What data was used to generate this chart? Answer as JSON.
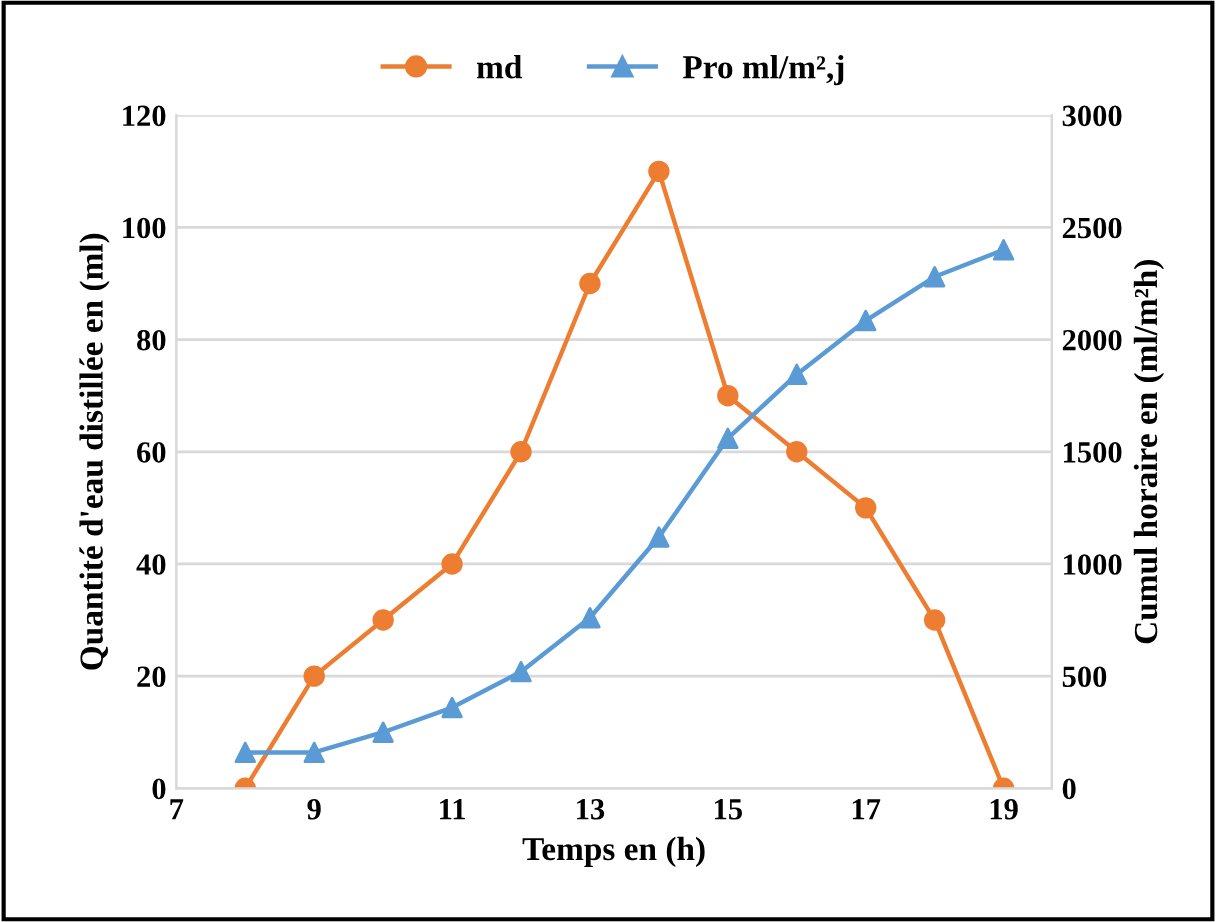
{
  "chart_data": {
    "type": "line",
    "xlabel": "Temps en (h)",
    "ylabel": "Quantité d'eau distillée en (ml)",
    "y2label": "Cumul horaire en (ml/m²h)",
    "x": [
      8,
      9,
      10,
      11,
      12,
      13,
      14,
      15,
      16,
      17,
      18,
      19
    ],
    "series": [
      {
        "name": "md",
        "color": "#ed7d31",
        "marker": "circle",
        "values": [
          0,
          20,
          30,
          40,
          60,
          90,
          110,
          70,
          60,
          50,
          30,
          0
        ]
      },
      {
        "name": "Pro ml/m²,j",
        "color": "#5b9bd5",
        "marker": "triangle",
        "axis": "y2",
        "values": [
          160,
          160,
          250,
          360,
          520,
          760,
          1120,
          1560,
          1845,
          2085,
          2280,
          2400
        ]
      }
    ],
    "xlim": [
      7,
      19.7
    ],
    "xticks": [
      7,
      9,
      11,
      13,
      15,
      17,
      19
    ],
    "ylim": [
      0,
      120
    ],
    "yticks": [
      0,
      20,
      40,
      60,
      80,
      100,
      120
    ],
    "y2lim": [
      0,
      3000
    ],
    "y2ticks": [
      0,
      500,
      1000,
      1500,
      2000,
      2500,
      3000
    ],
    "grid": "y",
    "legend": "top",
    "line_style": "solid"
  }
}
